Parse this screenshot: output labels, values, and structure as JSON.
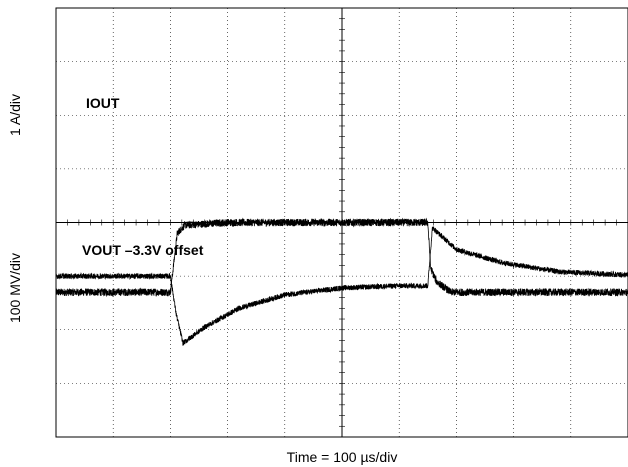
{
  "chart_data": {
    "type": "line",
    "title": "",
    "xlabel": "Time = 100 µs/div",
    "ylabel_top": "1 A/div",
    "ylabel_bottom": "100 MV/div",
    "grid": true,
    "divisions": {
      "x": 10,
      "y": 8
    },
    "x_range_us": [
      0,
      1000
    ],
    "series": [
      {
        "name": "IOUT",
        "units": "A",
        "scale": "1 A/div",
        "points_us": [
          [
            0,
            -1.3
          ],
          [
            200,
            -1.3
          ],
          [
            212,
            -0.2
          ],
          [
            225,
            -0.05
          ],
          [
            300,
            0.0
          ],
          [
            480,
            0.0
          ],
          [
            600,
            0.0
          ],
          [
            650,
            0.0
          ],
          [
            655,
            -0.85
          ],
          [
            665,
            -1.1
          ],
          [
            690,
            -1.3
          ],
          [
            1000,
            -1.3
          ]
        ],
        "noise_div": 0.07
      },
      {
        "name": "VOUT –3.3V offset",
        "units": "mV",
        "scale": "100 MV/div",
        "points_us": [
          [
            0,
            3.0
          ],
          [
            200,
            3.0
          ],
          [
            210,
            2.3
          ],
          [
            222,
            1.75
          ],
          [
            260,
            2.05
          ],
          [
            320,
            2.4
          ],
          [
            400,
            2.65
          ],
          [
            500,
            2.78
          ],
          [
            600,
            2.82
          ],
          [
            650,
            2.82
          ],
          [
            658,
            3.9
          ],
          [
            700,
            3.5
          ],
          [
            780,
            3.25
          ],
          [
            880,
            3.08
          ],
          [
            1000,
            3.02
          ]
        ],
        "noise_div": 0.05
      }
    ]
  }
}
